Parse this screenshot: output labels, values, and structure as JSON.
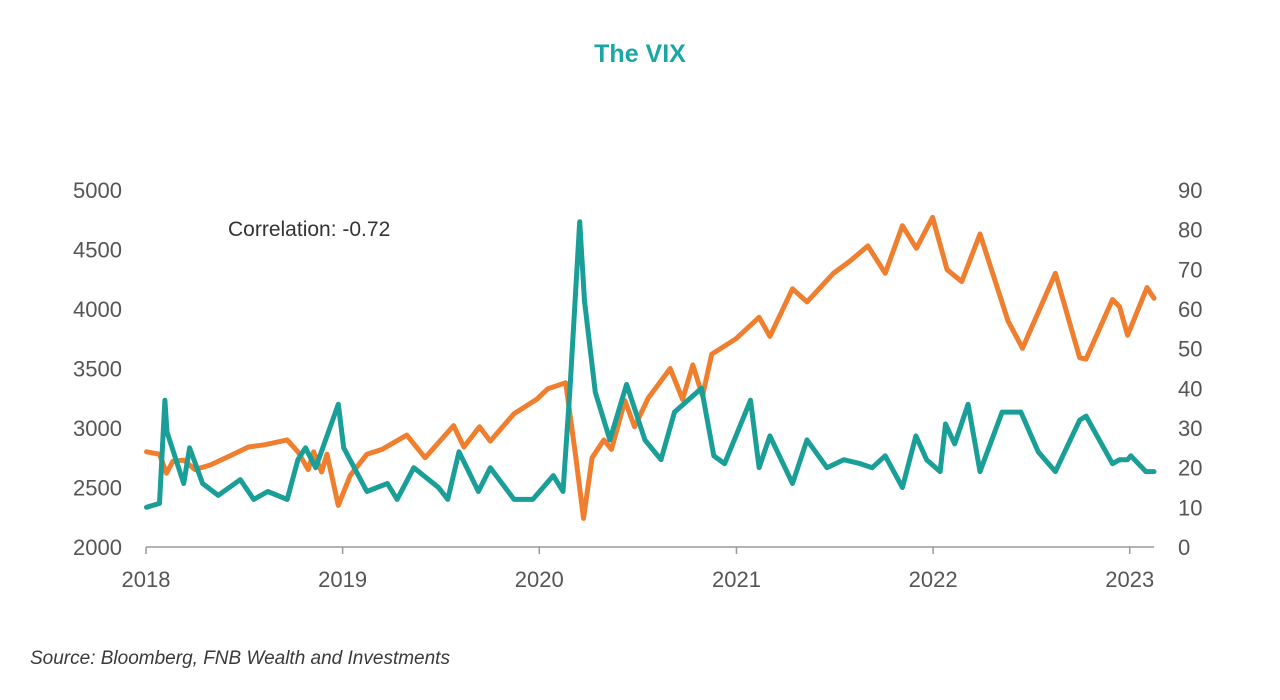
{
  "chart_data": {
    "type": "line",
    "title": "The VIX",
    "annotation": "Correlation: -0.72",
    "source": "Source: Bloomberg, FNB Wealth and Investments",
    "x_axis": {
      "type": "date",
      "range": [
        "2018-01-01",
        "2023-02-15"
      ],
      "ticks": [
        {
          "value": "2018-01-01",
          "label": "2018"
        },
        {
          "value": "2019-01-01",
          "label": "2019"
        },
        {
          "value": "2020-01-01",
          "label": "2020"
        },
        {
          "value": "2021-01-01",
          "label": "2021"
        },
        {
          "value": "2022-01-01",
          "label": "2022"
        },
        {
          "value": "2023-01-01",
          "label": "2023"
        }
      ]
    },
    "y_axis_left": {
      "range": [
        2000,
        5000
      ],
      "ticks": [
        2000,
        2500,
        3000,
        3500,
        4000,
        4500,
        5000
      ]
    },
    "y_axis_right": {
      "range": [
        0,
        90
      ],
      "ticks": [
        0,
        10,
        20,
        30,
        40,
        50,
        60,
        70,
        80,
        90
      ]
    },
    "grid": false,
    "legend": "none",
    "series": [
      {
        "axis": "left",
        "color": "#ef7f2e",
        "points": [
          [
            "2018-01-02",
            2800
          ],
          [
            "2018-01-26",
            2780
          ],
          [
            "2018-02-08",
            2620
          ],
          [
            "2018-02-20",
            2720
          ],
          [
            "2018-03-12",
            2730
          ],
          [
            "2018-04-02",
            2650
          ],
          [
            "2018-05-01",
            2690
          ],
          [
            "2018-06-12",
            2780
          ],
          [
            "2018-07-10",
            2840
          ],
          [
            "2018-08-10",
            2860
          ],
          [
            "2018-09-20",
            2900
          ],
          [
            "2018-10-10",
            2800
          ],
          [
            "2018-10-29",
            2650
          ],
          [
            "2018-11-08",
            2800
          ],
          [
            "2018-11-23",
            2630
          ],
          [
            "2018-12-03",
            2780
          ],
          [
            "2018-12-24",
            2350
          ],
          [
            "2019-01-15",
            2600
          ],
          [
            "2019-02-15",
            2780
          ],
          [
            "2019-03-15",
            2820
          ],
          [
            "2019-04-30",
            2940
          ],
          [
            "2019-06-03",
            2750
          ],
          [
            "2019-07-26",
            3020
          ],
          [
            "2019-08-14",
            2840
          ],
          [
            "2019-09-12",
            3010
          ],
          [
            "2019-10-02",
            2890
          ],
          [
            "2019-11-15",
            3120
          ],
          [
            "2019-12-27",
            3240
          ],
          [
            "2020-01-17",
            3330
          ],
          [
            "2020-02-19",
            3380
          ],
          [
            "2020-03-09",
            2750
          ],
          [
            "2020-03-23",
            2240
          ],
          [
            "2020-04-08",
            2750
          ],
          [
            "2020-04-30",
            2900
          ],
          [
            "2020-05-14",
            2820
          ],
          [
            "2020-06-08",
            3230
          ],
          [
            "2020-06-26",
            3010
          ],
          [
            "2020-07-21",
            3250
          ],
          [
            "2020-08-31",
            3500
          ],
          [
            "2020-09-23",
            3240
          ],
          [
            "2020-10-12",
            3530
          ],
          [
            "2020-10-30",
            3270
          ],
          [
            "2020-11-16",
            3620
          ],
          [
            "2020-12-31",
            3750
          ],
          [
            "2021-02-12",
            3930
          ],
          [
            "2021-03-04",
            3770
          ],
          [
            "2021-04-15",
            4170
          ],
          [
            "2021-05-12",
            4060
          ],
          [
            "2021-06-30",
            4300
          ],
          [
            "2021-07-30",
            4400
          ],
          [
            "2021-09-02",
            4530
          ],
          [
            "2021-10-04",
            4300
          ],
          [
            "2021-11-05",
            4700
          ],
          [
            "2021-12-01",
            4510
          ],
          [
            "2021-12-31",
            4770
          ],
          [
            "2022-01-27",
            4330
          ],
          [
            "2022-02-23",
            4230
          ],
          [
            "2022-03-29",
            4630
          ],
          [
            "2022-05-20",
            3900
          ],
          [
            "2022-06-16",
            3670
          ],
          [
            "2022-08-16",
            4300
          ],
          [
            "2022-09-30",
            3590
          ],
          [
            "2022-10-12",
            3580
          ],
          [
            "2022-11-30",
            4080
          ],
          [
            "2022-12-13",
            4020
          ],
          [
            "2022-12-28",
            3780
          ],
          [
            "2023-02-02",
            4180
          ],
          [
            "2023-02-15",
            4090
          ]
        ]
      },
      {
        "axis": "right",
        "color": "#1a9e98",
        "points": [
          [
            "2018-01-02",
            10
          ],
          [
            "2018-01-26",
            11
          ],
          [
            "2018-02-05",
            37
          ],
          [
            "2018-02-09",
            29
          ],
          [
            "2018-03-12",
            16
          ],
          [
            "2018-03-23",
            25
          ],
          [
            "2018-04-16",
            16
          ],
          [
            "2018-05-15",
            13
          ],
          [
            "2018-06-25",
            17
          ],
          [
            "2018-07-20",
            12
          ],
          [
            "2018-08-15",
            14
          ],
          [
            "2018-09-20",
            12
          ],
          [
            "2018-10-10",
            22
          ],
          [
            "2018-10-24",
            25
          ],
          [
            "2018-11-12",
            20
          ],
          [
            "2018-12-24",
            36
          ],
          [
            "2019-01-03",
            25
          ],
          [
            "2019-02-15",
            14
          ],
          [
            "2019-03-25",
            16
          ],
          [
            "2019-04-12",
            12
          ],
          [
            "2019-05-13",
            20
          ],
          [
            "2019-06-28",
            15
          ],
          [
            "2019-07-15",
            12
          ],
          [
            "2019-08-05",
            24
          ],
          [
            "2019-08-23",
            19
          ],
          [
            "2019-09-10",
            14
          ],
          [
            "2019-10-02",
            20
          ],
          [
            "2019-11-15",
            12
          ],
          [
            "2019-12-20",
            12
          ],
          [
            "2020-01-27",
            18
          ],
          [
            "2020-02-14",
            14
          ],
          [
            "2020-02-27",
            40
          ],
          [
            "2020-03-16",
            82
          ],
          [
            "2020-03-25",
            62
          ],
          [
            "2020-04-14",
            39
          ],
          [
            "2020-05-11",
            27
          ],
          [
            "2020-06-11",
            41
          ],
          [
            "2020-07-15",
            27
          ],
          [
            "2020-08-14",
            22
          ],
          [
            "2020-09-08",
            34
          ],
          [
            "2020-10-28",
            40
          ],
          [
            "2020-11-20",
            23
          ],
          [
            "2020-12-10",
            21
          ],
          [
            "2021-01-27",
            37
          ],
          [
            "2021-02-12",
            20
          ],
          [
            "2021-03-04",
            28
          ],
          [
            "2021-04-15",
            16
          ],
          [
            "2021-05-12",
            27
          ],
          [
            "2021-06-18",
            20
          ],
          [
            "2021-07-19",
            22
          ],
          [
            "2021-08-19",
            21
          ],
          [
            "2021-09-10",
            20
          ],
          [
            "2021-10-04",
            23
          ],
          [
            "2021-11-05",
            15
          ],
          [
            "2021-11-30",
            28
          ],
          [
            "2021-12-20",
            22
          ],
          [
            "2022-01-14",
            19
          ],
          [
            "2022-01-24",
            31
          ],
          [
            "2022-02-10",
            26
          ],
          [
            "2022-03-07",
            36
          ],
          [
            "2022-03-29",
            19
          ],
          [
            "2022-05-09",
            34
          ],
          [
            "2022-06-13",
            34
          ],
          [
            "2022-07-15",
            24
          ],
          [
            "2022-08-16",
            19
          ],
          [
            "2022-09-30",
            32
          ],
          [
            "2022-10-12",
            33
          ],
          [
            "2022-11-30",
            21
          ],
          [
            "2022-12-13",
            22
          ],
          [
            "2022-12-28",
            22
          ],
          [
            "2023-01-03",
            23
          ],
          [
            "2023-01-31",
            19
          ],
          [
            "2023-02-15",
            19
          ]
        ]
      }
    ]
  }
}
